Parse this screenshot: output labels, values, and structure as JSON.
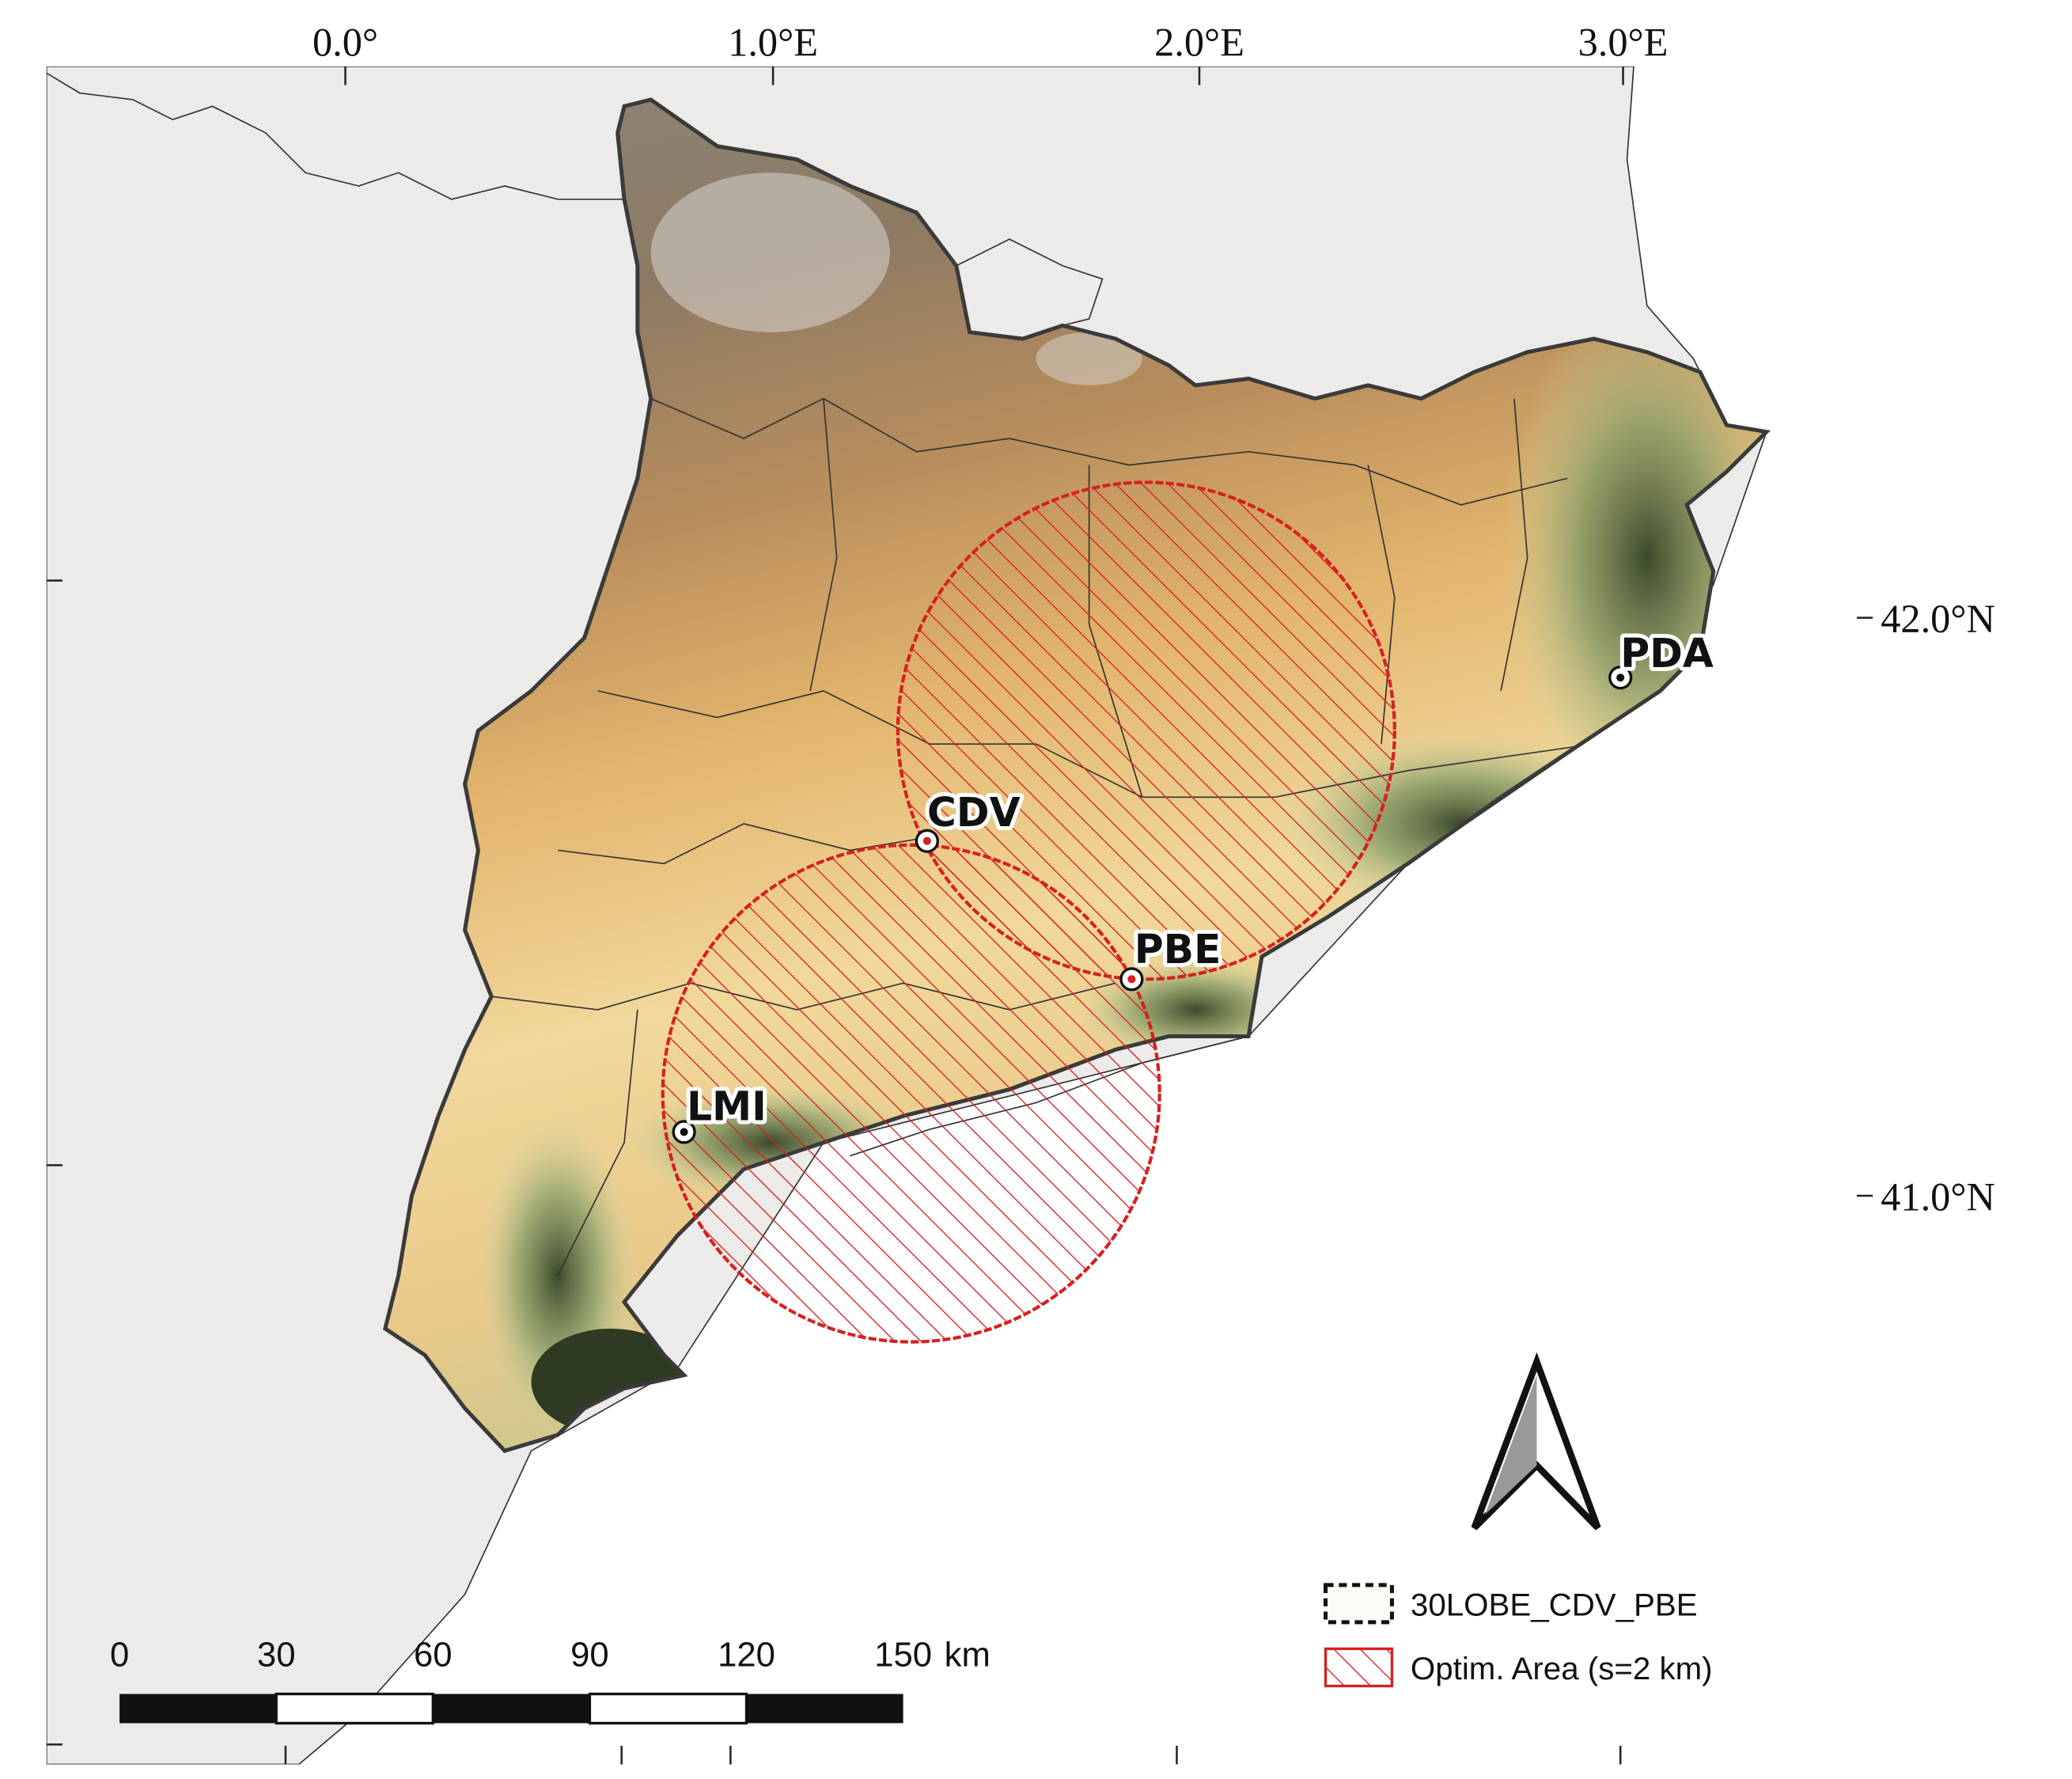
{
  "axes": {
    "top": [
      "0.0°",
      "1.0°E",
      "2.0°E",
      "3.0°E"
    ],
    "right": [
      "42.0°N",
      "41.0°N"
    ]
  },
  "stations": [
    "PDA",
    "CDV",
    "PBE",
    "LMI"
  ],
  "scale_bar": {
    "labels": [
      "0",
      "30",
      "60",
      "90",
      "120",
      "150"
    ],
    "unit": "km"
  },
  "legend": [
    "30LOBE_CDV_PBE",
    "Optim. Area (s=2 km)"
  ]
}
